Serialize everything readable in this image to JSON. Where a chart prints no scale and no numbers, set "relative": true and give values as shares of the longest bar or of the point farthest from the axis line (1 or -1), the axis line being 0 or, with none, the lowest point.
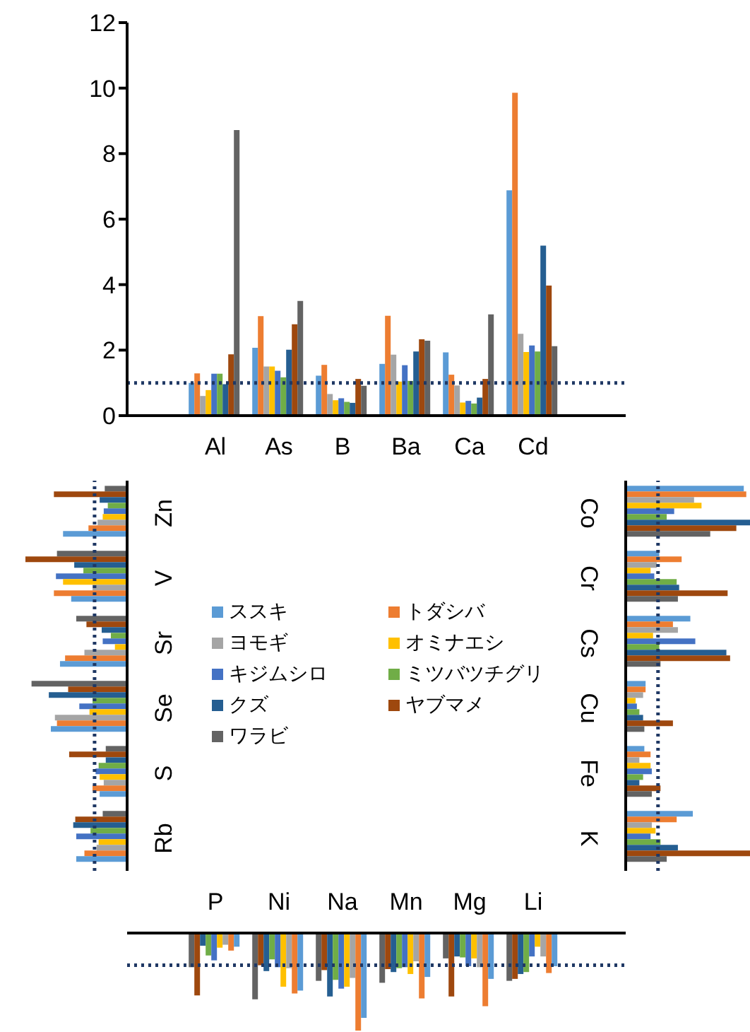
{
  "chart_data": [
    {
      "type": "bar",
      "categories": [
        "Al",
        "As",
        "B",
        "Ba",
        "Ca",
        "Cd"
      ],
      "ylim": [
        0,
        12
      ],
      "yticks": [
        0,
        2,
        4,
        6,
        8,
        10,
        12
      ],
      "legend": "bottom",
      "ref_lines": [
        {
          "axis": "y",
          "value": 1,
          "color": "#1f3864",
          "line_style": "dotted"
        }
      ],
      "series": [
        {
          "name": "ススキ",
          "color": "#5b9bd5",
          "values": [
            1.0,
            2.07,
            1.22,
            1.58,
            1.93,
            6.88
          ]
        },
        {
          "name": "トダシバ",
          "color": "#ed7d31",
          "values": [
            1.29,
            3.04,
            1.55,
            3.05,
            1.25,
            9.86
          ]
        },
        {
          "name": "ヨモギ",
          "color": "#a5a5a5",
          "values": [
            0.6,
            1.5,
            0.66,
            1.86,
            0.92,
            2.5
          ]
        },
        {
          "name": "オミナエシ",
          "color": "#ffc000",
          "values": [
            0.78,
            1.5,
            0.47,
            1.04,
            0.4,
            1.94
          ]
        },
        {
          "name": "キジムシロ",
          "color": "#4472c4",
          "values": [
            1.28,
            1.37,
            0.53,
            1.54,
            0.45,
            2.14
          ]
        },
        {
          "name": "ミツバツチグリ",
          "color": "#70ad47",
          "values": [
            1.28,
            1.17,
            0.42,
            1.06,
            0.37,
            1.96
          ]
        },
        {
          "name": "クズ",
          "color": "#255e91",
          "values": [
            0.96,
            2.01,
            0.39,
            1.96,
            0.55,
            5.19
          ]
        },
        {
          "name": "ヤブマメ",
          "color": "#9e480e",
          "values": [
            1.87,
            2.79,
            1.12,
            2.33,
            1.12,
            3.97
          ]
        },
        {
          "name": "ワラビ",
          "color": "#636363",
          "values": [
            8.72,
            3.5,
            0.91,
            2.29,
            3.09,
            2.12
          ]
        }
      ]
    },
    {
      "type": "bar",
      "orientation": "horizontal",
      "relative": true,
      "categories": [
        "Co",
        "Cr",
        "Cs",
        "Cu",
        "Fe",
        "K"
      ],
      "tick_labels": "y",
      "ref_lines": [
        {
          "axis": "x",
          "value": 0.26,
          "color": "#1f3864",
          "line_style": "dotted"
        }
      ],
      "series": [
        {
          "color": "#5b9bd5",
          "values": [
            0.95,
            0.27,
            0.52,
            0.16,
            0.15,
            0.54
          ]
        },
        {
          "color": "#ed7d31",
          "values": [
            0.97,
            0.45,
            0.38,
            0.16,
            0.2,
            0.41
          ]
        },
        {
          "color": "#a5a5a5",
          "values": [
            0.55,
            0.25,
            0.42,
            0.14,
            0.11,
            0.21
          ]
        },
        {
          "color": "#ffc000",
          "values": [
            0.61,
            0.2,
            0.22,
            0.08,
            0.2,
            0.24
          ]
        },
        {
          "color": "#4472c4",
          "values": [
            0.39,
            0.23,
            0.56,
            0.09,
            0.21,
            0.2
          ]
        },
        {
          "color": "#70ad47",
          "values": [
            0.33,
            0.41,
            0.27,
            0.11,
            0.14,
            0.28
          ]
        },
        {
          "color": "#255e91",
          "values": [
            1,
            0.43,
            0.81,
            0.14,
            0.11,
            0.42
          ]
        },
        {
          "color": "#9e480e",
          "values": [
            0.89,
            0.82,
            0.84,
            0.38,
            0.28,
            1
          ]
        },
        {
          "color": "#636363",
          "values": [
            0.68,
            0.42,
            0.28,
            0.15,
            0.21,
            0.33
          ]
        }
      ]
    },
    {
      "type": "bar",
      "relative": true,
      "categories": [
        "P",
        "Ni",
        "Na",
        "Mn",
        "Mg",
        "Li"
      ],
      "tick_labels": "x",
      "ref_lines": [
        {
          "axis": "y",
          "value": -0.33,
          "color": "#1f3864",
          "line_style": "dotted"
        }
      ],
      "series": [
        {
          "color": "#636363",
          "values": [
            -0.35,
            -0.68,
            -0.49,
            -0.51,
            -0.26,
            -0.49
          ]
        },
        {
          "color": "#9e480e",
          "values": [
            -0.64,
            -0.33,
            -0.38,
            -0.37,
            -0.65,
            -0.47
          ]
        },
        {
          "color": "#255e91",
          "values": [
            -0.13,
            -0.39,
            -0.65,
            -0.4,
            -0.24,
            -0.42
          ]
        },
        {
          "color": "#70ad47",
          "values": [
            -0.23,
            -0.27,
            -0.48,
            -0.36,
            -0.25,
            -0.4
          ]
        },
        {
          "color": "#4472c4",
          "values": [
            -0.28,
            -0.35,
            -0.57,
            -0.35,
            -0.34,
            -0.24
          ]
        },
        {
          "color": "#ffc000",
          "values": [
            -0.15,
            -0.55,
            -0.55,
            -0.42,
            -0.26,
            -0.14
          ]
        },
        {
          "color": "#a5a5a5",
          "values": [
            -0.12,
            -0.36,
            -0.46,
            -0.29,
            -0.35,
            -0.24
          ]
        },
        {
          "color": "#ed7d31",
          "values": [
            -0.18,
            -0.62,
            -1,
            -0.67,
            -0.75,
            -0.41
          ]
        },
        {
          "color": "#5b9bd5",
          "values": [
            -0.14,
            -0.59,
            -0.87,
            -0.45,
            -0.47,
            -0.34
          ]
        }
      ]
    },
    {
      "type": "bar",
      "orientation": "horizontal",
      "relative": true,
      "categories": [
        "Zn",
        "V",
        "Sr",
        "Se",
        "S",
        "Rb"
      ],
      "tick_labels": "y",
      "ref_lines": [
        {
          "axis": "x",
          "value": -0.32,
          "color": "#1f3864",
          "line_style": "dotted"
        }
      ],
      "series": [
        {
          "color": "#636363",
          "values": [
            -0.22,
            -0.69,
            -0.5,
            -0.94,
            -0.21,
            -0.24
          ]
        },
        {
          "color": "#9e480e",
          "values": [
            -0.72,
            -1,
            -0.4,
            -0.58,
            -0.57,
            -0.51
          ]
        },
        {
          "color": "#255e91",
          "values": [
            -0.27,
            -0.52,
            -0.25,
            -0.77,
            -0.21,
            -0.53
          ]
        },
        {
          "color": "#70ad47",
          "values": [
            -0.19,
            -0.43,
            -0.16,
            -0.34,
            -0.28,
            -0.36
          ]
        },
        {
          "color": "#4472c4",
          "values": [
            -0.23,
            -0.7,
            -0.24,
            -0.47,
            -0.31,
            -0.5
          ]
        },
        {
          "color": "#ffc000",
          "values": [
            -0.24,
            -0.63,
            -0.12,
            -0.37,
            -0.27,
            -0.28
          ]
        },
        {
          "color": "#a5a5a5",
          "values": [
            -0.29,
            -0.34,
            -0.42,
            -0.71,
            -0.23,
            -0.3
          ]
        },
        {
          "color": "#ed7d31",
          "values": [
            -0.38,
            -0.72,
            -0.61,
            -0.69,
            -0.34,
            -0.42
          ]
        },
        {
          "color": "#5b9bd5",
          "values": [
            -0.63,
            -0.55,
            -0.66,
            -0.75,
            -0.27,
            -0.5
          ]
        }
      ]
    }
  ]
}
